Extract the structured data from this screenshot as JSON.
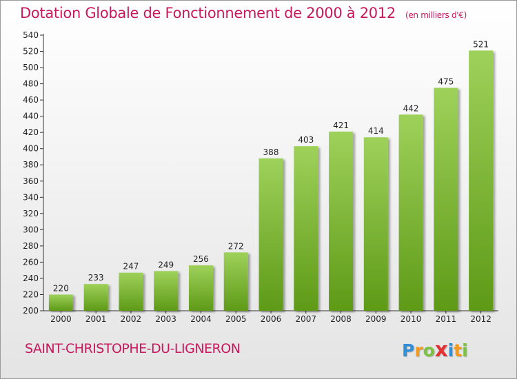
{
  "title": "Dotation Globale de Fonctionnement de 2000 à 2012",
  "title_unit": "(en milliers d'€)",
  "commune": "SAINT-CHRISTOPHE-DU-LIGNERON",
  "logo": {
    "letters": [
      "P",
      "r",
      "o",
      "x",
      "i",
      "t",
      "i"
    ],
    "colors": [
      "#2f8fd8",
      "#f39a1e",
      "#7cc242",
      "#e5302f",
      "#2f8fd8",
      "#f39a1e",
      "#7cc242"
    ]
  },
  "colors": {
    "accent": "#c8195e",
    "bar_top": "#9ed15a",
    "bar_bottom": "#5e9a17"
  },
  "chart_data": {
    "type": "bar",
    "categories": [
      "2000",
      "2001",
      "2002",
      "2003",
      "2004",
      "2005",
      "2006",
      "2007",
      "2008",
      "2009",
      "2010",
      "2011",
      "2012"
    ],
    "values": [
      220,
      233,
      247,
      249,
      256,
      272,
      388,
      403,
      421,
      414,
      442,
      475,
      521
    ],
    "ylim": [
      200,
      540
    ],
    "yticks": [
      200,
      220,
      240,
      260,
      280,
      300,
      320,
      340,
      360,
      380,
      400,
      420,
      440,
      460,
      480,
      500,
      520,
      540
    ],
    "grid": false,
    "xlabel": "",
    "ylabel": ""
  }
}
